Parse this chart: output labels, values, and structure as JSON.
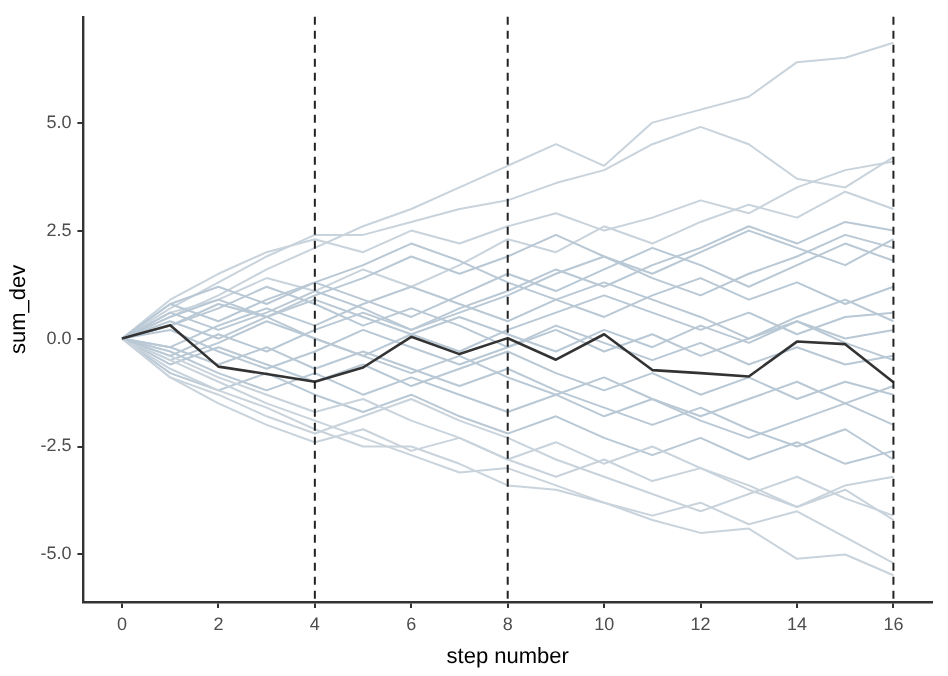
{
  "chart_data": {
    "type": "line",
    "xlabel": "step number",
    "ylabel": "sum_dev",
    "x": [
      0,
      1,
      2,
      3,
      4,
      5,
      6,
      7,
      8,
      9,
      10,
      11,
      12,
      13,
      14,
      15,
      16
    ],
    "xlim": [
      -0.8,
      16.8
    ],
    "ylim": [
      -6.1,
      7.45
    ],
    "xticks": [
      0,
      2,
      4,
      6,
      8,
      10,
      12,
      14,
      16
    ],
    "yticks": [
      {
        "value": -5,
        "label": "-5.0"
      },
      {
        "value": -2.5,
        "label": "-2.5"
      },
      {
        "value": 0,
        "label": "0.0"
      },
      {
        "value": 2.5,
        "label": "2.5"
      },
      {
        "value": 5,
        "label": "5.0"
      }
    ],
    "marker": "none",
    "line_style": "solid",
    "legend": false,
    "series": [
      {
        "color": "#c9d3dc",
        "values": [
          0,
          0.5,
          1.0,
          1.6,
          2.1,
          2.6,
          3.0,
          3.5,
          4.0,
          4.5,
          4.0,
          5.0,
          5.3,
          5.6,
          6.4,
          6.5,
          6.85
        ]
      },
      {
        "color": "#c9d3dc",
        "values": [
          0,
          0.7,
          1.3,
          1.9,
          2.4,
          2.4,
          2.7,
          3.0,
          3.2,
          3.6,
          3.9,
          4.5,
          4.9,
          4.5,
          3.7,
          3.5,
          4.2
        ]
      },
      {
        "color": "#c9d3dc",
        "values": [
          0,
          0.9,
          1.5,
          2.0,
          2.3,
          2.0,
          2.5,
          2.2,
          2.6,
          2.9,
          2.5,
          2.8,
          3.2,
          2.9,
          3.5,
          3.9,
          4.1
        ]
      },
      {
        "color": "#c9d3dc",
        "values": [
          0,
          0.6,
          0.9,
          1.4,
          1.1,
          1.6,
          1.2,
          1.7,
          2.3,
          2.0,
          2.6,
          2.2,
          2.7,
          3.1,
          2.8,
          3.4,
          3.0
        ]
      },
      {
        "color": "#b9c8d5",
        "values": [
          0,
          0.3,
          0.8,
          0.5,
          1.0,
          1.4,
          1.9,
          1.5,
          1.9,
          2.4,
          1.9,
          1.5,
          2.0,
          2.5,
          2.1,
          1.7,
          2.3
        ]
      },
      {
        "color": "#b9c8d5",
        "values": [
          0,
          0.8,
          0.4,
          0.9,
          1.3,
          0.9,
          0.5,
          1.0,
          1.5,
          1.1,
          1.6,
          2.1,
          1.7,
          1.2,
          1.7,
          2.2,
          1.8
        ]
      },
      {
        "color": "#b9c8d5",
        "values": [
          0,
          -0.2,
          0.3,
          0.7,
          0.3,
          0.8,
          1.2,
          0.8,
          0.4,
          0.9,
          0.5,
          1.0,
          1.4,
          0.9,
          1.3,
          0.8,
          1.2
        ]
      },
      {
        "color": "#b9c8d5",
        "values": [
          0,
          0.4,
          0.0,
          0.5,
          0.9,
          0.5,
          0.1,
          -0.3,
          0.2,
          0.6,
          1.0,
          0.6,
          0.2,
          0.6,
          0.1,
          0.5,
          0.6
        ]
      },
      {
        "color": "#b9c8d5",
        "values": [
          0,
          -0.5,
          -0.1,
          0.4,
          0.0,
          -0.4,
          0.1,
          0.5,
          0.1,
          -0.3,
          0.2,
          -0.2,
          0.3,
          -0.1,
          0.4,
          0.0,
          0.2
        ]
      },
      {
        "color": "#b9c8d5",
        "values": [
          0,
          0.2,
          -0.3,
          -0.7,
          -0.3,
          0.2,
          -0.2,
          -0.6,
          -0.2,
          0.3,
          -0.1,
          -0.5,
          -0.1,
          -0.6,
          -0.2,
          -0.6,
          -0.4
        ]
      },
      {
        "color": "#b9c8d5",
        "values": [
          0,
          -0.6,
          -0.2,
          -0.6,
          -1.0,
          -0.6,
          -1.1,
          -0.7,
          -0.3,
          -0.8,
          -1.2,
          -0.8,
          -1.3,
          -0.9,
          -1.4,
          -1.0,
          -1.3
        ]
      },
      {
        "color": "#b9c8d5",
        "values": [
          0,
          -0.3,
          -0.8,
          -1.2,
          -0.8,
          -1.3,
          -0.9,
          -1.3,
          -1.7,
          -1.3,
          -1.8,
          -1.4,
          -1.9,
          -2.3,
          -1.9,
          -1.5,
          -2.0
        ]
      },
      {
        "color": "#b9c8d5",
        "values": [
          0,
          -0.8,
          -1.2,
          -0.8,
          -1.3,
          -1.7,
          -1.3,
          -1.8,
          -2.2,
          -1.8,
          -2.3,
          -2.7,
          -2.3,
          -2.8,
          -2.4,
          -2.9,
          -2.6
        ]
      },
      {
        "color": "#c9d3dc",
        "values": [
          0,
          -0.9,
          -1.5,
          -2.0,
          -2.4,
          -2.1,
          -2.6,
          -2.3,
          -2.8,
          -3.2,
          -2.8,
          -3.3,
          -3.0,
          -3.5,
          -3.9,
          -3.4,
          -3.2
        ]
      },
      {
        "color": "#c9d3dc",
        "values": [
          0,
          -0.7,
          -1.2,
          -1.6,
          -2.1,
          -2.5,
          -2.5,
          -2.9,
          -3.4,
          -3.5,
          -3.8,
          -4.2,
          -4.5,
          -4.4,
          -5.1,
          -5.0,
          -5.48
        ]
      },
      {
        "color": "#c9d3dc",
        "values": [
          0,
          -0.5,
          -1.0,
          -1.5,
          -1.9,
          -2.3,
          -2.7,
          -3.1,
          -3.0,
          -3.4,
          -3.8,
          -4.1,
          -3.8,
          -4.3,
          -4.0,
          -4.6,
          -5.2
        ]
      },
      {
        "color": "#c9d3dc",
        "values": [
          0,
          -0.4,
          -0.9,
          -1.3,
          -1.7,
          -1.4,
          -1.9,
          -2.3,
          -2.8,
          -2.4,
          -2.9,
          -2.5,
          -3.0,
          -3.4,
          -3.9,
          -3.5,
          -4.2
        ]
      },
      {
        "color": "#b9c8d5",
        "values": [
          0,
          0.5,
          0.9,
          0.5,
          0.0,
          -0.4,
          -0.8,
          -0.4,
          -0.9,
          -1.3,
          -0.9,
          -1.4,
          -1.8,
          -1.4,
          -1.0,
          -1.5,
          -1.1
        ]
      },
      {
        "color": "#b9c8d5",
        "values": [
          0,
          0.6,
          0.2,
          0.6,
          1.1,
          0.7,
          0.2,
          0.6,
          1.0,
          1.5,
          1.9,
          1.4,
          1.0,
          1.5,
          1.9,
          2.4,
          2.1
        ]
      },
      {
        "color": "#b9c8d5",
        "values": [
          0,
          -0.4,
          0.1,
          -0.3,
          0.2,
          0.6,
          0.2,
          0.7,
          1.1,
          1.6,
          1.2,
          1.7,
          2.1,
          2.6,
          2.2,
          2.7,
          2.5
        ]
      },
      {
        "color": "#b9c8d5",
        "values": [
          0,
          0.3,
          0.7,
          1.2,
          0.8,
          0.3,
          0.7,
          0.3,
          -0.2,
          0.2,
          -0.3,
          0.1,
          -0.4,
          0.0,
          0.5,
          0.9,
          0.4
        ]
      },
      {
        "color": "#b9c8d5",
        "values": [
          0,
          -0.2,
          -0.6,
          -0.2,
          -0.7,
          -0.3,
          -0.7,
          -1.1,
          -0.7,
          -1.2,
          -1.6,
          -2.0,
          -1.6,
          -2.1,
          -2.5,
          -2.1,
          -2.8
        ]
      },
      {
        "color": "#b9c8d5",
        "values": [
          0,
          0.8,
          1.2,
          0.8,
          1.3,
          1.7,
          2.2,
          1.8,
          1.3,
          0.9,
          1.3,
          0.9,
          0.5,
          0.0,
          0.4,
          -0.1,
          -0.5
        ]
      },
      {
        "color": "#c9d3dc",
        "values": [
          0,
          -0.9,
          -1.3,
          -1.8,
          -2.2,
          -1.8,
          -1.4,
          -1.9,
          -2.3,
          -2.8,
          -3.2,
          -3.6,
          -4.0,
          -3.6,
          -3.2,
          -3.7,
          -4.1
        ]
      },
      {
        "color": "#333333",
        "values": [
          0,
          0.31,
          -0.65,
          -0.82,
          -1.0,
          -0.67,
          0.04,
          -0.36,
          0.01,
          -0.49,
          0.1,
          -0.73,
          -0.8,
          -0.88,
          -0.07,
          -0.13,
          -1.01
        ]
      }
    ],
    "ref_lines": [
      {
        "axis": "x",
        "value": 4,
        "color": "#222222",
        "line_style": "dashed"
      },
      {
        "axis": "x",
        "value": 8,
        "color": "#222222",
        "line_style": "dashed"
      },
      {
        "axis": "x",
        "value": 16,
        "color": "#222222",
        "line_style": "dashed"
      }
    ]
  }
}
